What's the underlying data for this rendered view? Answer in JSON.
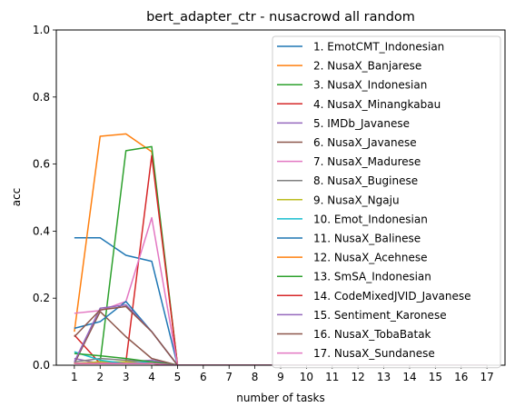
{
  "chart_data": {
    "type": "line",
    "title": "bert_adapter_ctr - nusacrowd all random",
    "xlabel": "number of tasks",
    "ylabel": "acc",
    "xlim": [
      0.3,
      17.7
    ],
    "ylim": [
      0,
      1.0
    ],
    "x_ticks": [
      1,
      2,
      3,
      4,
      5,
      6,
      7,
      8,
      9,
      10,
      11,
      12,
      13,
      14,
      15,
      16,
      17
    ],
    "y_ticks": [
      0.0,
      0.2,
      0.4,
      0.6,
      0.8,
      1.0
    ],
    "y_tick_labels": [
      "0.0",
      "0.2",
      "0.4",
      "0.6",
      "0.8",
      "1.0"
    ],
    "legend_position": "upper-right",
    "series": [
      {
        "name": "1. EmotCMT_Indonesian",
        "color": "#1f77b4",
        "values": [
          0.38,
          0.38,
          0.328,
          0.31,
          0,
          0,
          0,
          0,
          0,
          0,
          0,
          0,
          0,
          0,
          0,
          0,
          0
        ]
      },
      {
        "name": "2. NusaX_Banjarese",
        "color": "#ff7f0e",
        "values": [
          0.1,
          0.683,
          0.69,
          0.637,
          0,
          0,
          0,
          0,
          0,
          0,
          0,
          0,
          0,
          0,
          0,
          0,
          0
        ]
      },
      {
        "name": "3. NusaX_Indonesian",
        "color": "#2ca02c",
        "values": [
          0.005,
          0.01,
          0.64,
          0.652,
          0,
          0,
          0,
          0,
          0,
          0,
          0,
          0,
          0,
          0,
          0,
          0,
          0
        ]
      },
      {
        "name": "4. NusaX_Minangkabau",
        "color": "#d62728",
        "values": [
          0.09,
          0.005,
          0.01,
          0.625,
          0,
          0,
          0,
          0,
          0,
          0,
          0,
          0,
          0,
          0,
          0,
          0,
          0
        ]
      },
      {
        "name": "5. IMDb_Javanese",
        "color": "#9467bd",
        "values": [
          0.02,
          0.005,
          0.01,
          0.015,
          0,
          0,
          0,
          0,
          0,
          0,
          0,
          0,
          0,
          0,
          0,
          0,
          0
        ]
      },
      {
        "name": "6. NusaX_Javanese",
        "color": "#8c564b",
        "values": [
          0.005,
          0.16,
          0.085,
          0.02,
          0,
          0,
          0,
          0,
          0,
          0,
          0,
          0,
          0,
          0,
          0,
          0,
          0
        ]
      },
      {
        "name": "7. NusaX_Madurese",
        "color": "#e377c2",
        "values": [
          0.155,
          0.163,
          0.19,
          0.44,
          0,
          0,
          0,
          0,
          0,
          0,
          0,
          0,
          0,
          0,
          0,
          0,
          0
        ]
      },
      {
        "name": "8. NusaX_Buginese",
        "color": "#7f7f7f",
        "values": [
          0.01,
          0.02,
          0.015,
          0.01,
          0,
          0,
          0,
          0,
          0,
          0,
          0,
          0,
          0,
          0,
          0,
          0,
          0
        ]
      },
      {
        "name": "9. NusaX_Ngaju",
        "color": "#bcbd22",
        "values": [
          0.005,
          0.01,
          0.01,
          0.005,
          0,
          0,
          0,
          0,
          0,
          0,
          0,
          0,
          0,
          0,
          0,
          0,
          0
        ]
      },
      {
        "name": "10. Emot_Indonesian",
        "color": "#17becf",
        "values": [
          0.04,
          0.015,
          0.005,
          0.01,
          0,
          0,
          0,
          0,
          0,
          0,
          0,
          0,
          0,
          0,
          0,
          0,
          0
        ]
      },
      {
        "name": "11. NusaX_Balinese",
        "color": "#1f77b4",
        "values": [
          0.11,
          0.13,
          0.19,
          0.1,
          0,
          0,
          0,
          0,
          0,
          0,
          0,
          0,
          0,
          0,
          0,
          0,
          0
        ]
      },
      {
        "name": "12. NusaX_Acehnese",
        "color": "#ff7f0e",
        "values": [
          0.005,
          0.005,
          0.005,
          0.005,
          0,
          0,
          0,
          0,
          0,
          0,
          0,
          0,
          0,
          0,
          0,
          0,
          0
        ]
      },
      {
        "name": "13. SmSA_Indonesian",
        "color": "#2ca02c",
        "values": [
          0.035,
          0.028,
          0.02,
          0.01,
          0,
          0,
          0,
          0,
          0,
          0,
          0,
          0,
          0,
          0,
          0,
          0,
          0
        ]
      },
      {
        "name": "14. CodeMixedJVID_Javanese",
        "color": "#d62728",
        "values": [
          0.005,
          0.005,
          0.005,
          0.005,
          0,
          0,
          0,
          0,
          0,
          0,
          0,
          0,
          0,
          0,
          0,
          0,
          0
        ]
      },
      {
        "name": "15. Sentiment_Karonese",
        "color": "#9467bd",
        "values": [
          0.01,
          0.17,
          0.18,
          0.1,
          0,
          0,
          0,
          0,
          0,
          0,
          0,
          0,
          0,
          0,
          0,
          0,
          0
        ]
      },
      {
        "name": "16. NusaX_TobaBatak",
        "color": "#8c564b",
        "values": [
          0.085,
          0.165,
          0.175,
          0.1,
          0,
          0,
          0,
          0,
          0,
          0,
          0,
          0,
          0,
          0,
          0,
          0,
          0
        ]
      },
      {
        "name": "17. NusaX_Sundanese",
        "color": "#e377c2",
        "values": [
          0.005,
          0.005,
          0.005,
          0.005,
          0,
          0,
          0,
          0,
          0,
          0,
          0,
          0,
          0,
          0,
          0,
          0,
          0
        ]
      }
    ]
  }
}
